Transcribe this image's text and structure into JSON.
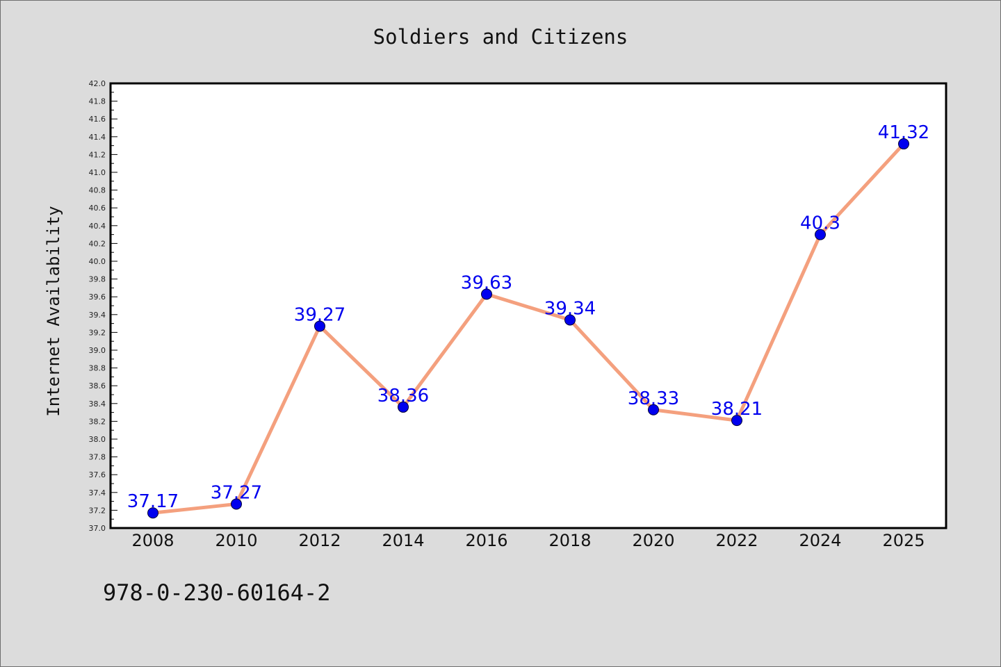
{
  "chart_data": {
    "type": "line",
    "title": "Soldiers and Citizens",
    "xlabel": "",
    "ylabel": "Internet Availability",
    "categories": [
      "2008",
      "2010",
      "2012",
      "2014",
      "2016",
      "2018",
      "2020",
      "2022",
      "2024",
      "2025"
    ],
    "series": [
      {
        "values": [
          37.17,
          37.27,
          39.27,
          38.36,
          39.63,
          39.34,
          38.33,
          38.21,
          40.3,
          41.32
        ],
        "labels": [
          "37.17",
          "37.27",
          "39.27",
          "38.36",
          "39.63",
          "39.34",
          "38.33",
          "38.21",
          "40.3",
          "41.32"
        ],
        "line_color": "#f4a07e",
        "marker_color": "#0000ee",
        "label_color": "#0000ee"
      }
    ],
    "ylim": [
      37.0,
      42.0
    ],
    "yticks": [
      "37.0",
      "37.2",
      "37.4",
      "37.6",
      "37.8",
      "38.0",
      "38.2",
      "38.4",
      "38.6",
      "38.8",
      "39.0",
      "39.2",
      "39.4",
      "39.6",
      "39.8",
      "40.0",
      "40.2",
      "40.4",
      "40.6",
      "40.8",
      "41.0",
      "41.2",
      "41.4",
      "41.6",
      "41.8",
      "42.0"
    ],
    "grid": false,
    "legend": "none"
  },
  "footnote": "978-0-230-60164-2"
}
